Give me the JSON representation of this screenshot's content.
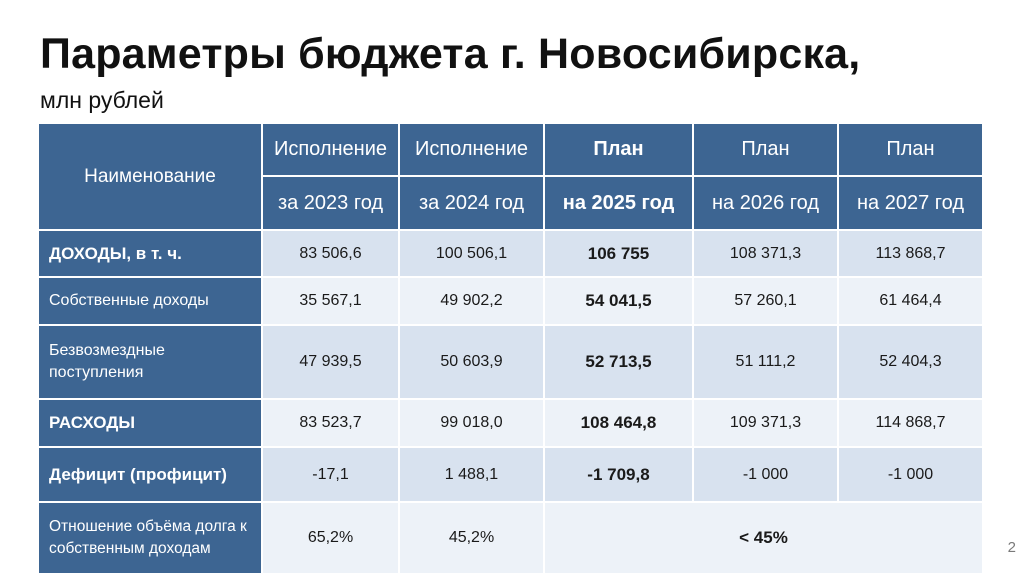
{
  "title": "Параметры бюджета г. Новосибирска,",
  "subtitle": "млн рублей",
  "table": {
    "name_header": "Наименование",
    "header_row1": [
      "Исполнение",
      "Исполнение",
      "План",
      "План",
      "План"
    ],
    "header_row2": [
      "за 2023 год",
      "за 2024 год",
      "на 2025 год",
      "на 2026 год",
      "на 2027 год"
    ],
    "rows": [
      {
        "label": "ДОХОДЫ, в т. ч.",
        "values": [
          "83 506,6",
          "100 506,1",
          "106 755",
          "108 371,3",
          "113 868,7"
        ]
      },
      {
        "label": "Собственные доходы",
        "values": [
          "35 567,1",
          "49 902,2",
          "54 041,5",
          "57 260,1",
          "61 464,4"
        ]
      },
      {
        "label": "Безвозмездные поступления",
        "values": [
          "47 939,5",
          "50 603,9",
          "52 713,5",
          "51 111,2",
          "52 404,3"
        ]
      },
      {
        "label": "РАСХОДЫ",
        "values": [
          "83 523,7",
          "99 018,0",
          "108 464,8",
          "109 371,3",
          "114 868,7"
        ]
      },
      {
        "label": "Дефицит (профицит)",
        "values": [
          "-17,1",
          "1 488,1",
          "-1 709,8",
          "-1 000",
          "-1 000"
        ]
      },
      {
        "label": "Отношение объёма долга к собственным доходам",
        "values": [
          "65,2%",
          "45,2%",
          "< 45%"
        ]
      }
    ]
  },
  "page_number": "2"
}
